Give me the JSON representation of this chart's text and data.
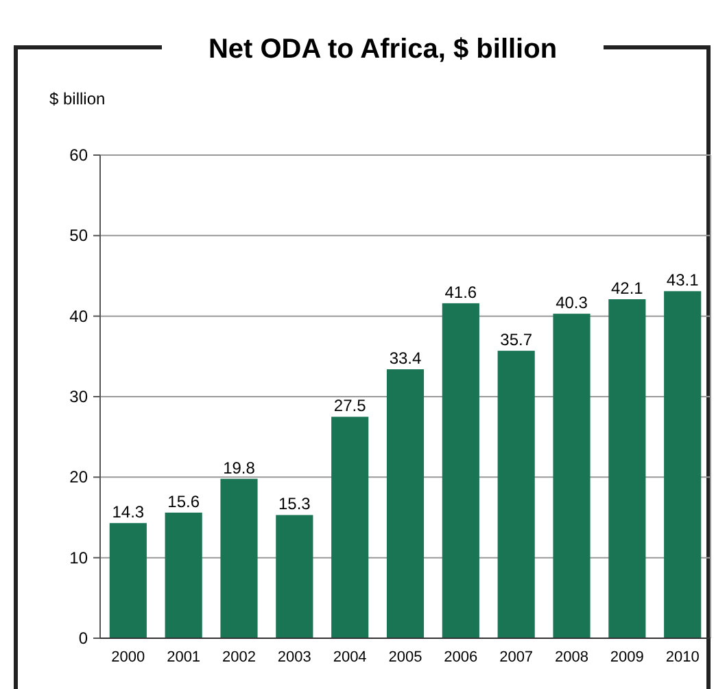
{
  "chart_data": {
    "type": "bar",
    "title": "Net ODA to Africa, $ billion",
    "ylabel": "$ billion",
    "categories": [
      "2000",
      "2001",
      "2002",
      "2003",
      "2004",
      "2005",
      "2006",
      "2007",
      "2008",
      "2009",
      "2010"
    ],
    "values": [
      14.3,
      15.6,
      19.8,
      15.3,
      27.5,
      33.4,
      41.6,
      35.7,
      40.3,
      42.1,
      43.1
    ],
    "color": "#1a7554",
    "ylim": [
      0,
      60
    ],
    "yticks": [
      0,
      10,
      20,
      30,
      40,
      50,
      60
    ],
    "grid": "y",
    "data_labels": true
  }
}
